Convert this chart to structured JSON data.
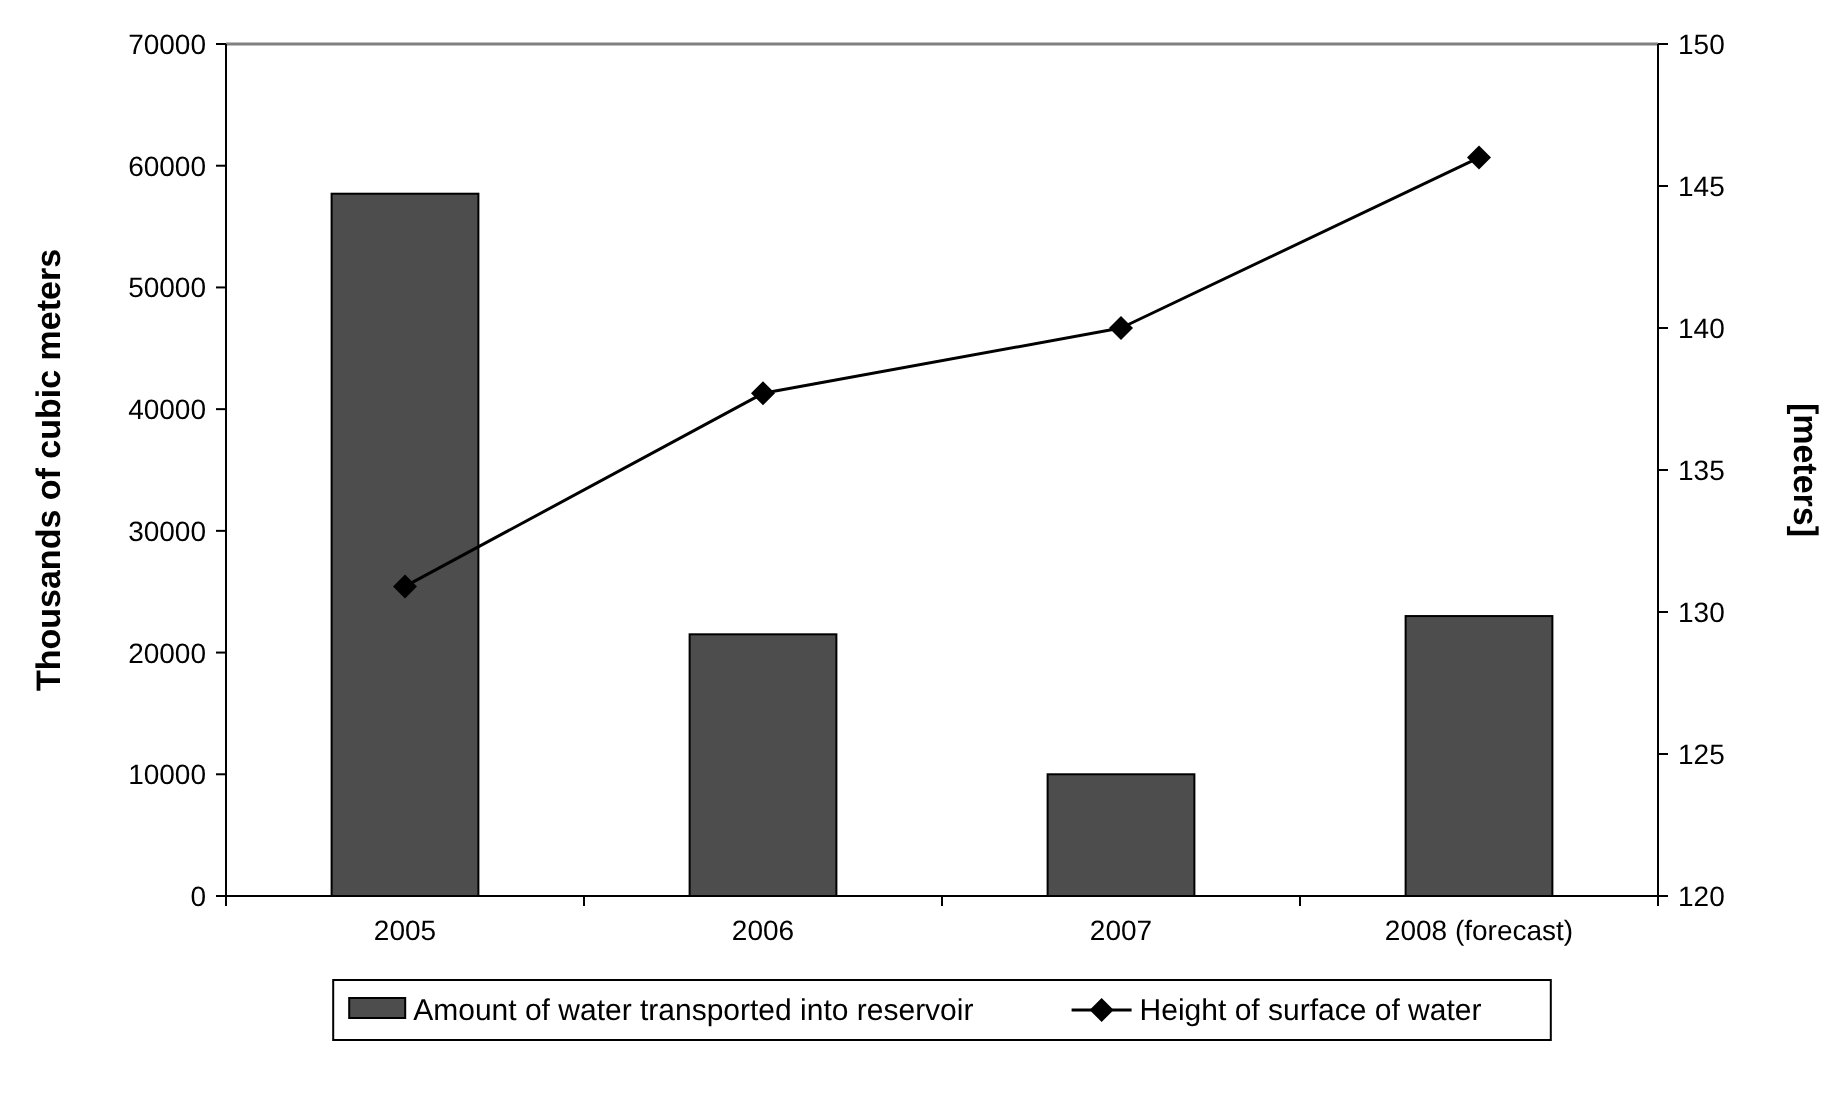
{
  "chart_data": {
    "type": "bar",
    "categories": [
      "2005",
      "2006",
      "2007",
      "2008 (forecast)"
    ],
    "ylabel": "Thousands of cubic meters",
    "y2label": "[meters]",
    "ylim": [
      0,
      70000
    ],
    "yticks": [
      0,
      10000,
      20000,
      30000,
      40000,
      50000,
      60000,
      70000
    ],
    "y2lim": [
      120,
      150
    ],
    "y2ticks": [
      120,
      125,
      130,
      135,
      140,
      145,
      150
    ],
    "legend": "bottom",
    "series": [
      {
        "name": "Amount of water transported into reservoir",
        "color": "#4d4d4d",
        "values": [
          57700,
          21500,
          10000,
          23000
        ]
      },
      {
        "name": "Height of surface of water",
        "type": "line",
        "axis": "y2",
        "color": "#000000",
        "marker": "diamond",
        "values": [
          130.9,
          137.7,
          140.0,
          146.0
        ]
      }
    ]
  }
}
